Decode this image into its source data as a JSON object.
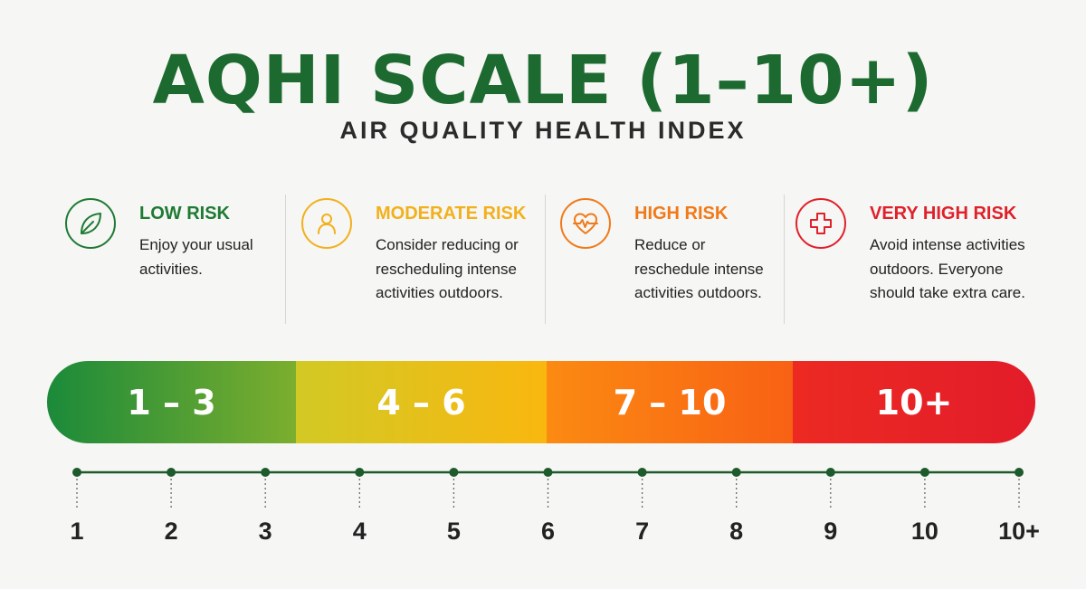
{
  "header": {
    "title": "AQHI SCALE (1–10+)",
    "subtitle": "AIR QUALITY HEALTH INDEX"
  },
  "categories": [
    {
      "label": "LOW RISK",
      "description": "Enjoy your usual activities.",
      "color": "#1f7a34",
      "icon": "leaf-icon"
    },
    {
      "label": "MODERATE RISK",
      "description": "Consider reducing or rescheduling intense activities outdoors.",
      "color": "#f2b01c",
      "icon": "person-icon"
    },
    {
      "label": "HIGH RISK",
      "description": "Reduce or reschedule intense activities outdoors.",
      "color": "#f07a1a",
      "icon": "heart-pulse-icon"
    },
    {
      "label": "VERY HIGH RISK",
      "description": "Avoid intense activities outdoors. Everyone should take extra care.",
      "color": "#e0212b",
      "icon": "medical-cross-icon"
    }
  ],
  "scale_bar": [
    {
      "label": "1 – 3",
      "colors": [
        "#1b8a3a",
        "#7cae2e"
      ]
    },
    {
      "label": "4 – 6",
      "colors": [
        "#d2c925",
        "#f9b70f"
      ]
    },
    {
      "label": "7 – 10",
      "colors": [
        "#fb8a12",
        "#f86114"
      ]
    },
    {
      "label": "10+",
      "colors": [
        "#ec2a22",
        "#e31c2a"
      ]
    }
  ],
  "axis": {
    "ticks": [
      "1",
      "2",
      "3",
      "4",
      "5",
      "6",
      "7",
      "8",
      "9",
      "10",
      "10+"
    ],
    "color": "#1d5a2c"
  }
}
